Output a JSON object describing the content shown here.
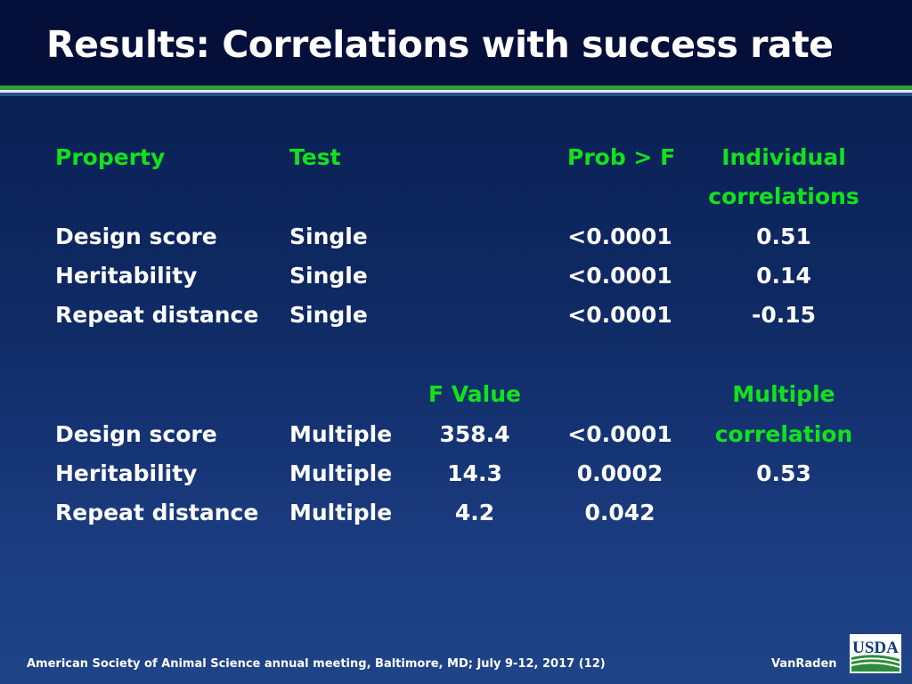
{
  "slide": {
    "title": "Results: Correlations with success rate"
  },
  "table1": {
    "headers": {
      "property": "Property",
      "test": "Test",
      "prob": "Prob > F",
      "corr_line1": "Individual",
      "corr_line2": "correlations"
    },
    "rows": [
      {
        "property": "Design score",
        "test": "Single",
        "prob": "<0.0001",
        "corr": "0.51"
      },
      {
        "property": "Heritability",
        "test": "Single",
        "prob": "<0.0001",
        "corr": "0.14"
      },
      {
        "property": "Repeat distance",
        "test": "Single",
        "prob": "<0.0001",
        "corr": "-0.15"
      }
    ]
  },
  "table2": {
    "headers": {
      "fvalue": "F Value",
      "corr_line1": "Multiple",
      "corr_line2": "correlation"
    },
    "rows": [
      {
        "property": "Design score",
        "test": "Multiple",
        "fvalue": "358.4",
        "prob": "<0.0001"
      },
      {
        "property": "Heritability",
        "test": "Multiple",
        "fvalue": "14.3",
        "prob": "0.0002",
        "corr": "0.53"
      },
      {
        "property": "Repeat distance",
        "test": "Multiple",
        "fvalue": "4.2",
        "prob": "0.042"
      }
    ]
  },
  "footer": {
    "text": "American Society of Animal Science annual meeting, Baltimore, MD; July  9-12, 2017 (12)",
    "author": "VanRaden",
    "logo_text": "USDA"
  },
  "colors": {
    "header_accent": "#12e21c",
    "background": "#0f2a64",
    "stripe_green": "#2f9a3c"
  }
}
